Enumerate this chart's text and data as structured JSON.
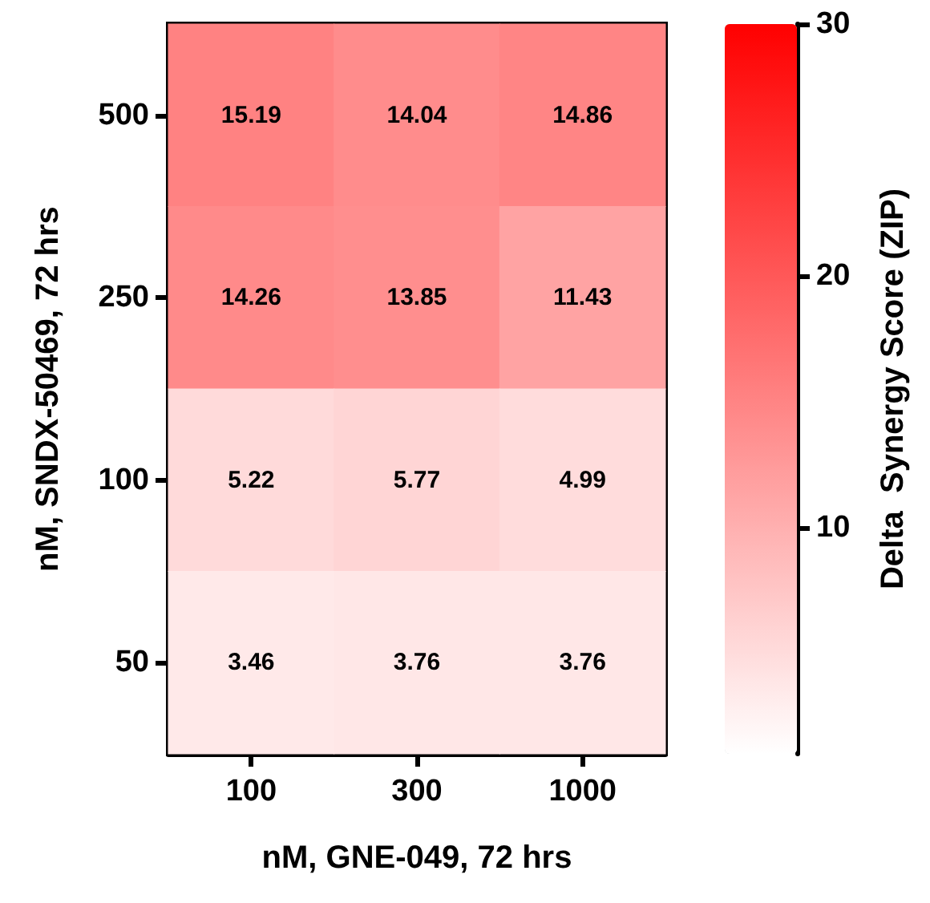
{
  "chart_data": {
    "type": "heatmap",
    "xlabel": "nM, GNE-049, 72 hrs",
    "ylabel": "nM, SNDX-50469, 72 hrs",
    "clabel": "Delta  Synergy Score (ZIP)",
    "categories": [
      "100",
      "300",
      "1000"
    ],
    "y_categories": [
      "500",
      "250",
      "100",
      "50"
    ],
    "cells": [
      [
        15.19,
        14.04,
        14.86
      ],
      [
        14.26,
        13.85,
        11.43
      ],
      [
        5.22,
        5.77,
        4.99
      ],
      [
        3.46,
        3.76,
        3.76
      ]
    ],
    "clim": [
      1,
      30
    ],
    "cticks": [
      10,
      20,
      30
    ],
    "colors": [
      "#ffffff",
      "#ff0000"
    ],
    "data_labels": true
  }
}
